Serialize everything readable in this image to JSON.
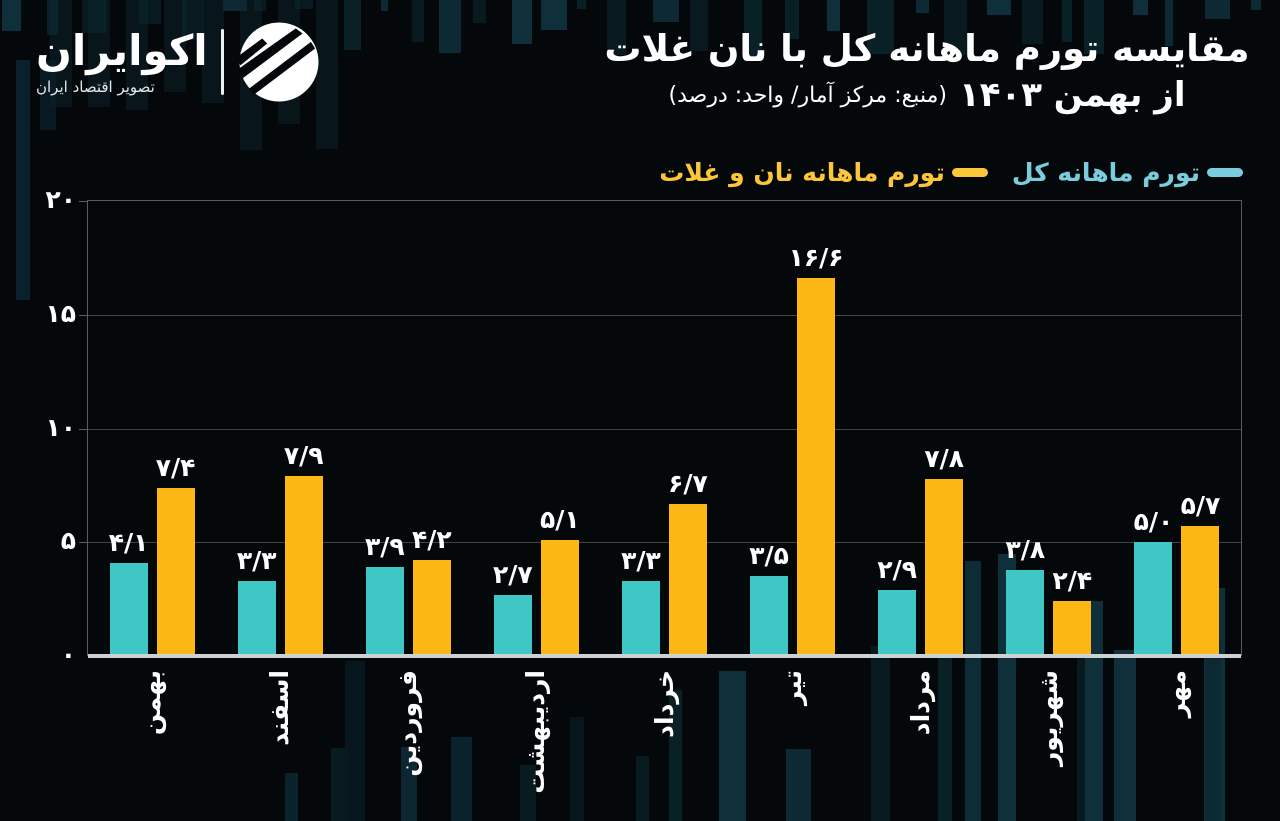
{
  "logo": {
    "brand": "اکوایران",
    "tagline": "تصویر اقتصاد ایران"
  },
  "colors": {
    "background": "#04080a",
    "bar_total": "#3ec7c5",
    "bar_bread": "#fcb714",
    "legend_total_text": "#7acddc",
    "legend_bread_text": "#fdc53a",
    "grid": "#3e4345",
    "plot_border": "#575c5e",
    "axis_line": "#ccd1d4",
    "text": "#ffffff"
  },
  "chart_data": {
    "type": "bar",
    "title": "مقایسه تورم ماهانه کل با نان غلات",
    "subtitle_period": "از بهمن ۱۴۰۳",
    "subtitle_source": "(منبع: مرکز آمار/ واحد: درصد)",
    "ylim": [
      0,
      20
    ],
    "grid": "horizontal",
    "legend_position": "top-right",
    "y_ticks": [
      {
        "value": 20,
        "label": "۲۰"
      },
      {
        "value": 15,
        "label": "۱۵"
      },
      {
        "value": 10,
        "label": "۱۰"
      },
      {
        "value": 5,
        "label": "۵"
      },
      {
        "value": 0,
        "label": "۰"
      }
    ],
    "categories": [
      "بهمن",
      "اسفند",
      "فروردین",
      "اردیبهشت",
      "خرداد",
      "تیر",
      "مرداد",
      "شهریور",
      "مهر"
    ],
    "series": [
      {
        "name": "تورم ماهانه کل",
        "color_key": "bar_total",
        "values": [
          4.1,
          3.3,
          3.9,
          2.7,
          3.3,
          3.5,
          2.9,
          3.8,
          5.0
        ],
        "labels": [
          "۴/۱",
          "۳/۳",
          "۳/۹",
          "۲/۷",
          "۳/۳",
          "۳/۵",
          "۲/۹",
          "۳/۸",
          "۵/۰"
        ]
      },
      {
        "name": "تورم ماهانه نان و غلات",
        "color_key": "bar_bread",
        "values": [
          7.4,
          7.9,
          4.2,
          5.1,
          6.7,
          16.6,
          7.8,
          2.4,
          5.7
        ],
        "labels": [
          "۷/۴",
          "۷/۹",
          "۴/۲",
          "۵/۱",
          "۶/۷",
          "۱۶/۶",
          "۷/۸",
          "۲/۴",
          "۵/۷"
        ]
      }
    ]
  }
}
